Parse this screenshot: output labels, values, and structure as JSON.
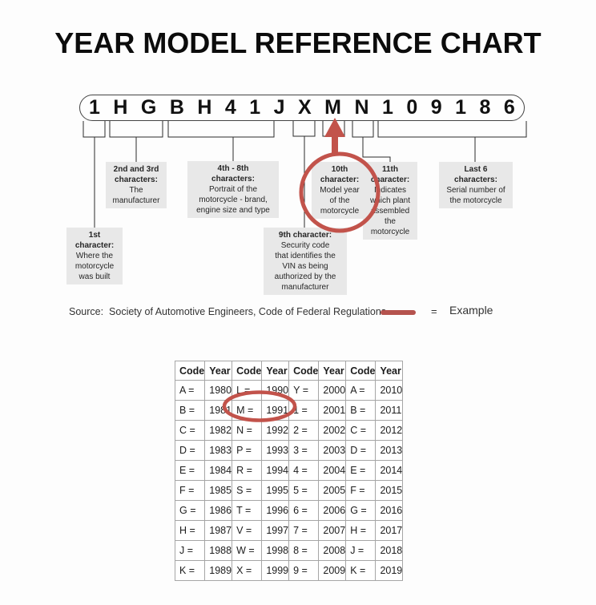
{
  "title": "YEAR MODEL REFERENCE CHART",
  "vin": {
    "chars": [
      "1",
      "H",
      "G",
      "B",
      "H",
      "4",
      "1",
      "J",
      "X",
      "M",
      "N",
      "1",
      "0",
      "9",
      "1",
      "8",
      "6"
    ]
  },
  "callouts": {
    "first": {
      "title": "1st\ncharacter:",
      "body": "Where the\nmotorcycle\nwas built"
    },
    "second_third": {
      "title": "2nd and 3rd\ncharacters:",
      "body": "The\nmanufacturer"
    },
    "fourth_eighth": {
      "title": "4th - 8th\ncharacters:",
      "body": "Portrait of the\nmotorcycle - brand,\nengine size and type"
    },
    "ninth": {
      "title": "9th character:",
      "body": "Security code\nthat identifies the\nVIN as being\nauthorized by the\nmanufacturer"
    },
    "tenth": {
      "title": "10th\ncharacter:",
      "body": "Model year\nof the\nmotorcycle"
    },
    "eleventh": {
      "title": "11th\ncharacter:",
      "body": "Indicates\nwhich plant\nassembled\nthe\nmotorcycle"
    },
    "last6": {
      "title": "Last 6\ncharacters:",
      "body": "Serial number of\nthe motorcycle"
    }
  },
  "source_note": "Source:  Society of Automotive Engineers, Code of Federal Regulations",
  "legend": {
    "equals": "=",
    "label": "Example"
  },
  "table": {
    "headers": [
      "Code",
      "Year",
      "Code",
      "Year",
      "Code",
      "Year",
      "Code",
      "Year"
    ],
    "rows": [
      [
        "A =",
        "1980",
        "L =",
        "1990",
        "Y =",
        "2000",
        "A =",
        "2010"
      ],
      [
        "B =",
        "1981",
        "M =",
        "1991",
        "1 =",
        "2001",
        "B =",
        "2011"
      ],
      [
        "C =",
        "1982",
        "N =",
        "1992",
        "2 =",
        "2002",
        "C =",
        "2012"
      ],
      [
        "D =",
        "1983",
        "P =",
        "1993",
        "3 =",
        "2003",
        "D =",
        "2013"
      ],
      [
        "E =",
        "1984",
        "R =",
        "1994",
        "4 =",
        "2004",
        "E =",
        "2014"
      ],
      [
        "F =",
        "1985",
        "S =",
        "1995",
        "5 =",
        "2005",
        "F =",
        "2015"
      ],
      [
        "G =",
        "1986",
        "T =",
        "1996",
        "6 =",
        "2006",
        "G =",
        "2016"
      ],
      [
        "H =",
        "1987",
        "V =",
        "1997",
        "7 =",
        "2007",
        "H =",
        "2017"
      ],
      [
        "J =",
        "1988",
        "W =",
        "1998",
        "8 =",
        "2008",
        "J =",
        "2018"
      ],
      [
        "K =",
        "1989",
        "X =",
        "1999",
        "9 =",
        "2009",
        "K =",
        "2019"
      ]
    ]
  },
  "colors": {
    "accent_red": "#c2534b",
    "callout_bg": "#e8e8e8",
    "line_dark": "#2b2b2b"
  }
}
